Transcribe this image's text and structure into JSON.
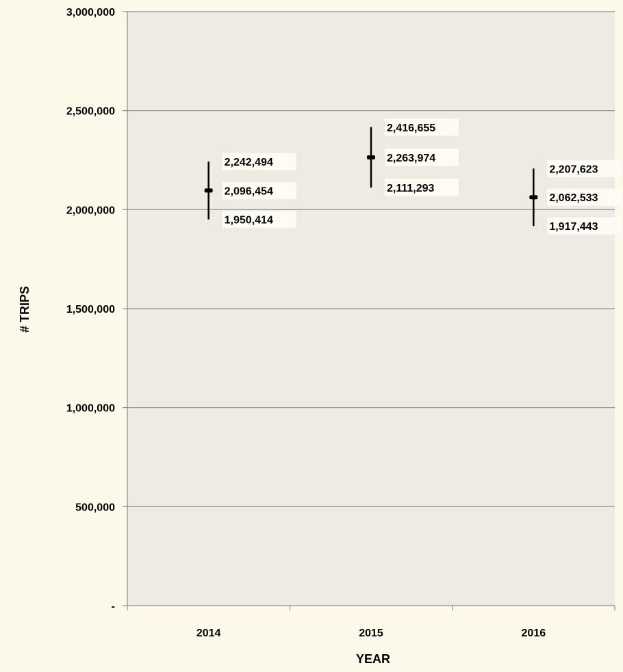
{
  "chart_data": {
    "type": "scatter",
    "title": "",
    "xlabel": "YEAR",
    "ylabel": "# TRIPS",
    "categories": [
      "2014",
      "2015",
      "2016"
    ],
    "series": [
      {
        "values": [
          2096454,
          2263974,
          2062533
        ],
        "upper": [
          2242494,
          2416655,
          2207623
        ],
        "lower": [
          1950414,
          2111293,
          1917443
        ],
        "value_labels": [
          "2,096,454",
          "2,263,974",
          "2,062,533"
        ],
        "upper_labels": [
          "2,242,494",
          "2,416,655",
          "2,207,623"
        ],
        "lower_labels": [
          "1,950,414",
          "2,111,293",
          "1,917,443"
        ]
      }
    ],
    "ylim": [
      0,
      3000000
    ],
    "yticks": [
      0,
      500000,
      1000000,
      1500000,
      2000000,
      2500000,
      3000000
    ],
    "ytick_labels": [
      "-",
      "500,000",
      "1,000,000",
      "1,500,000",
      "2,000,000",
      "2,500,000",
      "3,000,000"
    ],
    "grid": true,
    "colors": {
      "page_background": "#fdf9ea",
      "plot_background": "#eeebe2",
      "gridline": "#8c8c8c",
      "marker": "#000000",
      "label_background": "#fdfbf4"
    }
  }
}
